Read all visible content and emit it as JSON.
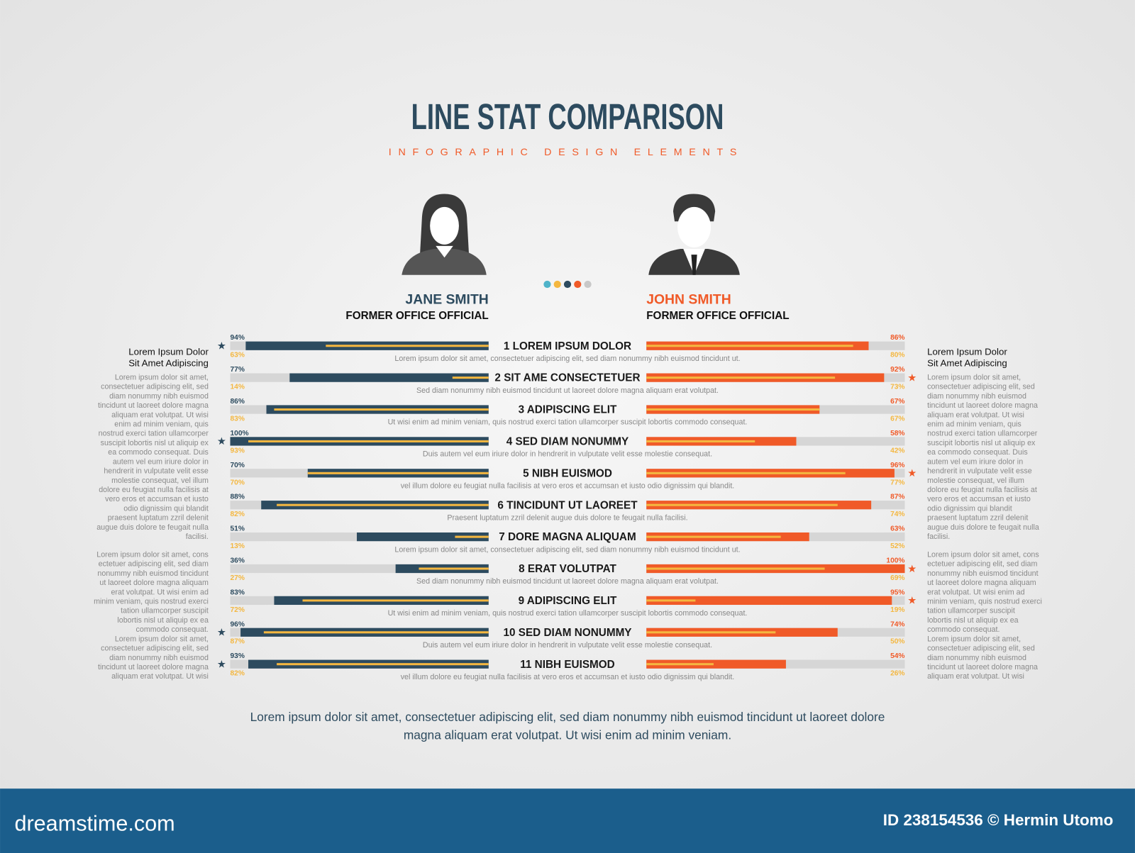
{
  "title": "LINE STAT COMPARISON",
  "subtitle": "INFOGRAPHIC DESIGN ELEMENTS",
  "xlim": [
    0,
    100
  ],
  "people": [
    {
      "name": "JANE SMITH",
      "role": "FORMER OFFICE OFFICIAL",
      "color": "#2d4b5f"
    },
    {
      "name": "JOHN SMITH",
      "role": "FORMER OFFICE OFFICIAL",
      "color": "#f05a28"
    }
  ],
  "secondary_color": "#f4b740",
  "rows": [
    {
      "label": "1 LOREM IPSUM DOLOR",
      "description": "Lorem ipsum dolor sit amet, consectetuer adipiscing elit, sed diam nonummy nibh euismod tincidunt ut.",
      "values": [
        94,
        63,
        86,
        80
      ],
      "value_labels": [
        "94%",
        "63%",
        "86%",
        "80%"
      ],
      "star": "left"
    },
    {
      "label": "2 SIT AME CONSECTETUER",
      "description": "Sed diam nonummy nibh euismod tincidunt ut laoreet dolore magna aliquam erat volutpat.",
      "values": [
        77,
        14,
        92,
        73
      ],
      "value_labels": [
        "77%",
        "14%",
        "92%",
        "73%"
      ],
      "star": "right"
    },
    {
      "label": "3 ADIPISCING ELIT",
      "description": "Ut wisi enim ad minim veniam, quis nostrud exerci tation ullamcorper suscipit lobortis commodo consequat.",
      "values": [
        86,
        83,
        67,
        67
      ],
      "value_labels": [
        "86%",
        "83%",
        "67%",
        "67%"
      ]
    },
    {
      "label": "4 SED DIAM NONUMMY",
      "description": "Duis autem vel eum iriure dolor in hendrerit in vulputate velit esse molestie consequat.",
      "values": [
        100,
        93,
        58,
        42
      ],
      "value_labels": [
        "100%",
        "93%",
        "58%",
        "42%"
      ],
      "star": "left"
    },
    {
      "label": "5 NIBH EUISMOD",
      "description": "vel illum dolore eu feugiat nulla facilisis at vero eros et accumsan et iusto odio dignissim qui blandit.",
      "values": [
        70,
        70,
        96,
        77
      ],
      "value_labels": [
        "70%",
        "70%",
        "96%",
        "77%"
      ],
      "star": "right"
    },
    {
      "label": "6 TINCIDUNT UT LAOREET",
      "description": "Praesent luptatum zzril delenit augue duis dolore te feugait nulla facilisi.",
      "values": [
        88,
        82,
        87,
        74
      ],
      "value_labels": [
        "88%",
        "82%",
        "87%",
        "74%"
      ]
    },
    {
      "label": "7 DORE MAGNA ALIQUAM",
      "description": "Lorem ipsum dolor sit amet, consectetuer adipiscing elit, sed diam nonummy nibh euismod tincidunt ut.",
      "values": [
        51,
        13,
        63,
        52
      ],
      "value_labels": [
        "51%",
        "13%",
        "63%",
        "52%"
      ]
    },
    {
      "label": "8 ERAT VOLUTPAT",
      "description": "Sed diam nonummy nibh euismod tincidunt ut laoreet dolore magna aliquam erat volutpat.",
      "values": [
        36,
        27,
        100,
        69
      ],
      "value_labels": [
        "36%",
        "27%",
        "100%",
        "69%"
      ],
      "star": "right"
    },
    {
      "label": "9 ADIPISCING ELIT",
      "description": "Ut wisi enim ad minim veniam, quis nostrud exerci tation ullamcorper suscipit lobortis commodo consequat.",
      "values": [
        83,
        72,
        95,
        19
      ],
      "value_labels": [
        "83%",
        "72%",
        "95%",
        "19%"
      ],
      "star": "right"
    },
    {
      "label": "10 SED DIAM NONUMMY",
      "description": "Duis autem vel eum iriure dolor in hendrerit in vulputate velit esse molestie consequat.",
      "values": [
        96,
        87,
        74,
        50
      ],
      "value_labels": [
        "96%",
        "87%",
        "74%",
        "50%"
      ],
      "star": "left"
    },
    {
      "label": "11 NIBH EUISMOD",
      "description": "vel illum dolore eu feugiat nulla facilisis at vero eros et accumsan et iusto odio dignissim qui blandit.",
      "values": [
        93,
        82,
        54,
        26
      ],
      "value_labels": [
        "93%",
        "82%",
        "54%",
        "26%"
      ],
      "star": "left"
    }
  ],
  "star_symbol": "★",
  "sides": [
    {
      "heading": [
        "Lorem Ipsum Dolor",
        "Sit Amet Adipiscing"
      ],
      "paragraphs": [
        [
          "Lorem ipsum dolor sit amet,",
          "consectetuer adipiscing elit, sed",
          "diam nonummy nibh euismod",
          "tincidunt ut laoreet dolore magna",
          "aliquam erat volutpat. Ut wisi",
          "enim ad minim veniam, quis",
          "nostrud exerci tation ullamcorper",
          "suscipit lobortis nisl ut aliquip ex",
          "ea commodo consequat. Duis",
          "autem vel eum iriure dolor in",
          "hendrerit in vulputate velit esse",
          "molestie consequat, vel illum",
          "dolore eu feugiat nulla facilisis at",
          "vero eros et accumsan et iusto",
          "odio dignissim qui blandit",
          "praesent luptatum zzril delenit",
          "augue duis dolore te feugait nulla",
          "facilisi."
        ],
        [
          "Lorem ipsum dolor sit amet, cons",
          "ectetuer adipiscing elit, sed diam",
          "nonummy nibh euismod tincidunt",
          "ut laoreet dolore magna aliquam",
          "erat volutpat. Ut wisi enim ad",
          "minim veniam, quis nostrud exerci",
          "tation ullamcorper suscipit",
          "lobortis nisl ut aliquip ex ea",
          "commodo consequat.",
          "Lorem ipsum dolor sit amet,",
          "consectetuer adipiscing elit, sed",
          "diam nonummy nibh euismod",
          "tincidunt ut laoreet dolore magna",
          "aliquam erat volutpat. Ut wisi"
        ]
      ]
    },
    {
      "heading": [
        "Lorem Ipsum Dolor",
        "Sit Amet Adipiscing"
      ],
      "paragraphs": [
        [
          "Lorem ipsum dolor sit amet,",
          "consectetuer adipiscing elit, sed",
          "diam nonummy nibh euismod",
          "tincidunt ut laoreet dolore magna",
          "aliquam erat volutpat. Ut wisi",
          "enim ad minim veniam, quis",
          "nostrud exerci tation ullamcorper",
          "suscipit lobortis nisl ut aliquip ex",
          "ea commodo consequat. Duis",
          "autem vel eum iriure dolor in",
          "hendrerit in vulputate velit esse",
          "molestie consequat, vel illum",
          "dolore eu feugiat nulla facilisis at",
          "vero eros et accumsan et iusto",
          "odio dignissim qui blandit",
          "praesent luptatum zzril delenit",
          "augue duis dolore te feugait nulla",
          "facilisi."
        ],
        [
          "Lorem ipsum dolor sit amet, cons",
          "ectetuer adipiscing elit, sed diam",
          "nonummy nibh euismod tincidunt",
          "ut laoreet dolore magna aliquam",
          "erat volutpat. Ut wisi enim ad",
          "minim veniam, quis nostrud exerci",
          "tation ullamcorper suscipit",
          "lobortis nisl ut aliquip ex ea",
          "commodo consequat.",
          "Lorem ipsum dolor sit amet,",
          "consectetuer adipiscing elit, sed",
          "diam nonummy nibh euismod",
          "tincidunt ut laoreet dolore magna",
          "aliquam erat volutpat. Ut wisi"
        ]
      ]
    }
  ],
  "footer": [
    "Lorem ipsum dolor sit amet, consectetuer adipiscing elit, sed diam nonummy nibh euismod tincidunt ut laoreet dolore",
    "magna aliquam erat volutpat. Ut wisi enim ad minim veniam."
  ],
  "banner": {
    "site": "dreamstime.com",
    "credit": "ID 238154536 © Hermin Utomo"
  }
}
